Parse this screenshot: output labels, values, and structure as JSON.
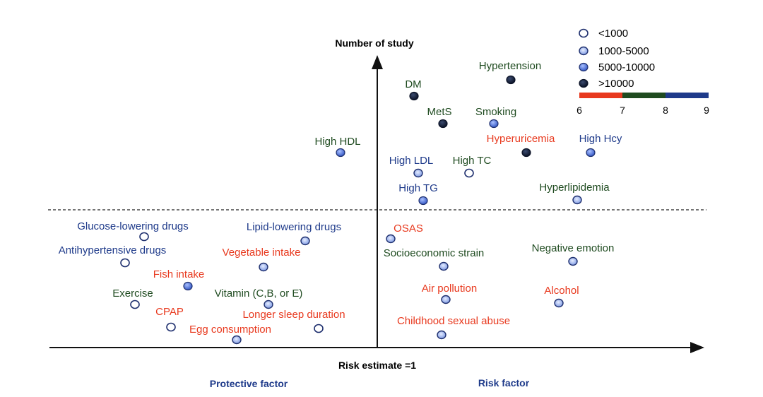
{
  "colors": {
    "green": "#1f4b20",
    "blue": "#1e3a8a",
    "red": "#e8391e",
    "axis": "#111111",
    "marker_edge": "#1e2f6e"
  },
  "axes": {
    "y_title": "Number of study",
    "x_title": "Risk estimate =1",
    "left_label": "Protective factor",
    "right_label": "Risk factor"
  },
  "legend": {
    "items": [
      {
        "label": "<1000",
        "marker": "open"
      },
      {
        "label": "1000-5000",
        "marker": "light"
      },
      {
        "label": "5000-10000",
        "marker": "medium"
      },
      {
        "label": ">10000",
        "marker": "dark"
      }
    ],
    "scale_colors": [
      "#e8391e",
      "#1f4b20",
      "#1e3a8a"
    ],
    "scale_ticks": [
      "6",
      "7",
      "8",
      "9"
    ]
  },
  "factors": [
    {
      "label": "Hypertension",
      "color": "green",
      "marker": "dark"
    },
    {
      "label": "DM",
      "color": "green",
      "marker": "dark"
    },
    {
      "label": "MetS",
      "color": "green",
      "marker": "dark"
    },
    {
      "label": "Smoking",
      "color": "green",
      "marker": "medium"
    },
    {
      "label": "High HDL",
      "color": "green",
      "marker": "medium"
    },
    {
      "label": "Hyperuricemia",
      "color": "red",
      "marker": "dark"
    },
    {
      "label": "High Hcy",
      "color": "blue",
      "marker": "medium"
    },
    {
      "label": "High LDL",
      "color": "blue",
      "marker": "light"
    },
    {
      "label": "High TC",
      "color": "green",
      "marker": "open"
    },
    {
      "label": "High TG",
      "color": "blue",
      "marker": "medium"
    },
    {
      "label": "Hyperlipidemia",
      "color": "green",
      "marker": "light"
    },
    {
      "label": "Glucose-lowering drugs",
      "color": "blue",
      "marker": "open"
    },
    {
      "label": "Lipid-lowering drugs",
      "color": "blue",
      "marker": "light"
    },
    {
      "label": "Antihypertensive drugs",
      "color": "blue",
      "marker": "open"
    },
    {
      "label": "Vegetable intake",
      "color": "red",
      "marker": "light"
    },
    {
      "label": "Fish intake",
      "color": "red",
      "marker": "medium"
    },
    {
      "label": "Exercise",
      "color": "green",
      "marker": "open"
    },
    {
      "label": "Vitamin (C,B, or E)",
      "color": "green",
      "marker": "light"
    },
    {
      "label": "CPAP",
      "color": "red",
      "marker": "open"
    },
    {
      "label": "Longer sleep duration",
      "color": "red",
      "marker": "open"
    },
    {
      "label": "Egg consumption",
      "color": "red",
      "marker": "light"
    },
    {
      "label": "OSAS",
      "color": "red",
      "marker": "light"
    },
    {
      "label": "Socioeconomic strain",
      "color": "green",
      "marker": "light"
    },
    {
      "label": "Negative emotion",
      "color": "green",
      "marker": "light"
    },
    {
      "label": "Air pollution",
      "color": "red",
      "marker": "light"
    },
    {
      "label": "Alcohol",
      "color": "red",
      "marker": "light"
    },
    {
      "label": "Childhood sexual abuse",
      "color": "red",
      "marker": "light"
    }
  ]
}
